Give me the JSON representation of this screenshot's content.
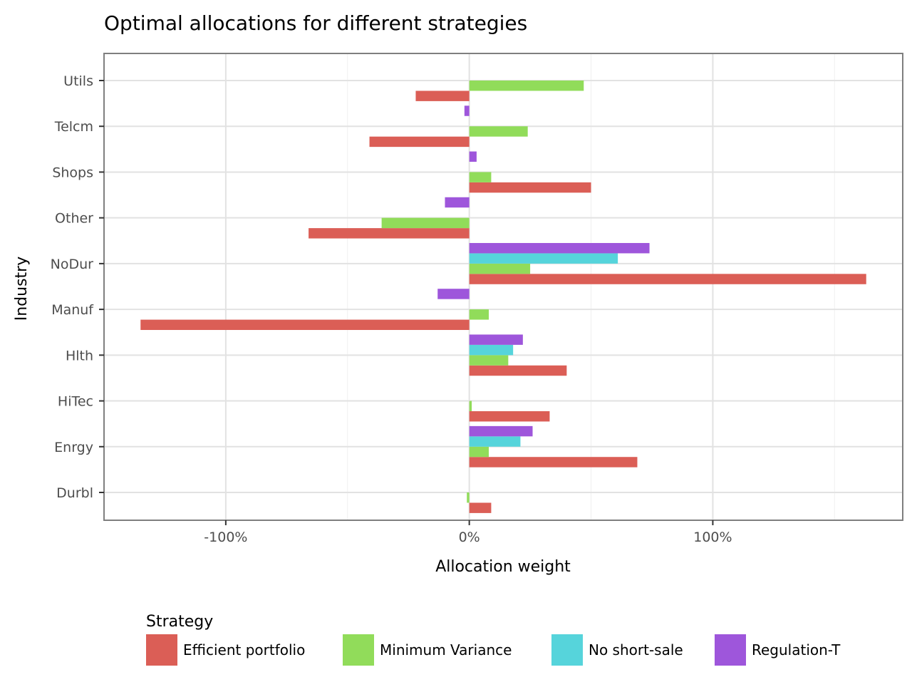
{
  "chart_data": {
    "type": "bar",
    "orientation": "horizontal",
    "title": "Optimal allocations for different strategies",
    "xlabel": "Allocation weight",
    "ylabel": "Industry",
    "categories": [
      "Durbl",
      "Enrgy",
      "HiTec",
      "Hlth",
      "Manuf",
      "NoDur",
      "Other",
      "Shops",
      "Telcm",
      "Utils"
    ],
    "xlim": [
      -150,
      178
    ],
    "x_ticks": [
      -100,
      0,
      100
    ],
    "x_tick_labels": [
      "-100%",
      "0%",
      "100%"
    ],
    "grid": true,
    "legend_title": "Strategy",
    "legend_position": "bottom",
    "series": [
      {
        "name": "Efficient portfolio",
        "color": "#DB5E56",
        "values": [
          9,
          69,
          33,
          40,
          -135,
          163,
          -66,
          50,
          -41,
          -22
        ]
      },
      {
        "name": "Minimum Variance",
        "color": "#91DC5A",
        "values": [
          -1,
          8,
          1,
          16,
          8,
          25,
          -36,
          9,
          24,
          47
        ]
      },
      {
        "name": "No short-sale",
        "color": "#56D4DB",
        "values": [
          0,
          21,
          0,
          18,
          0,
          61,
          0,
          0,
          0,
          0
        ]
      },
      {
        "name": "Regulation-T",
        "color": "#9E56DB",
        "values": [
          0,
          26,
          0,
          22,
          -13,
          74,
          -10,
          3,
          -2,
          0
        ]
      }
    ]
  }
}
